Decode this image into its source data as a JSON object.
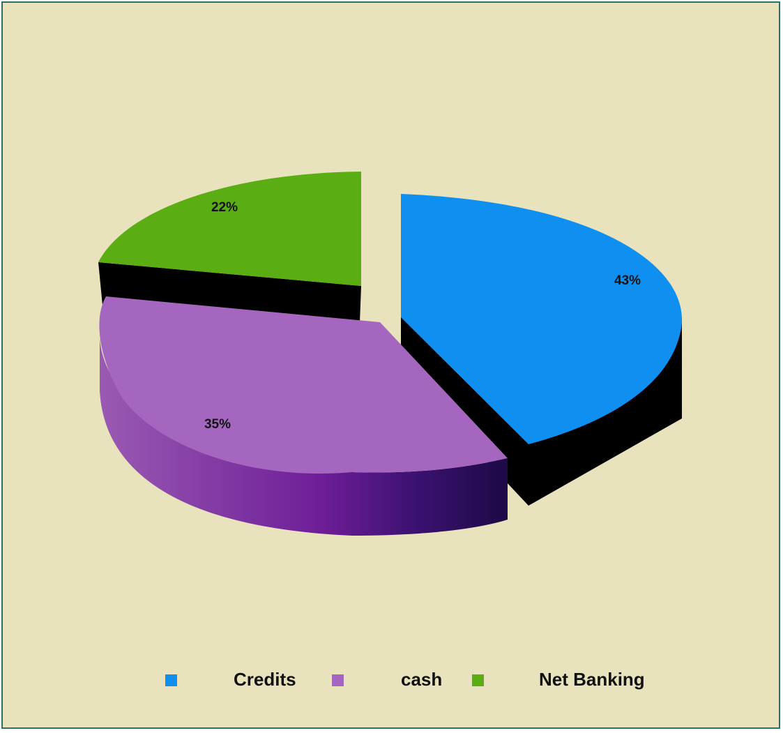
{
  "chart_data": {
    "type": "pie",
    "title": "",
    "slices": [
      {
        "label": "Credits",
        "value": 43,
        "display": "43%",
        "color": "#0f8ff0"
      },
      {
        "label": "cash",
        "value": 35,
        "display": "35%",
        "color": "#a566bf"
      },
      {
        "label": "Net Banking",
        "value": 22,
        "display": "22%",
        "color": "#5aae14"
      }
    ],
    "style": "3d-exploded",
    "legend_position": "bottom",
    "background_color": "#e8e3bd"
  }
}
